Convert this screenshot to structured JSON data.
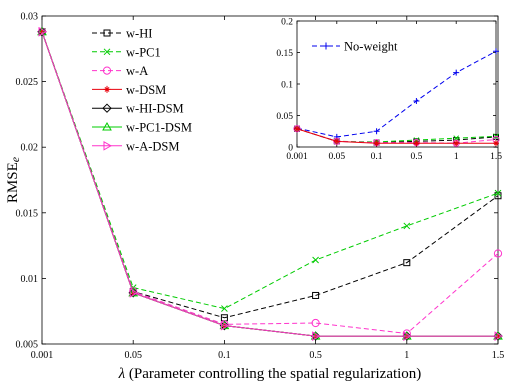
{
  "chart_data": [
    {
      "type": "line",
      "xlabel_symbol": "λ",
      "xlabel": "(Parameter controlling the spatial regularization)",
      "ylabel": "RMSE",
      "ylabel_sub": "e",
      "x": [
        "0.001",
        "0.05",
        "0.1",
        "0.5",
        "1",
        "1.5"
      ],
      "ylim": [
        0.005,
        0.03
      ],
      "yticks": [
        "0.005",
        "0.01",
        "0.015",
        "0.02",
        "0.025",
        "0.03"
      ],
      "legend_position": "top-left",
      "grid": false,
      "series": [
        {
          "name": "w-HI",
          "color": "#000000",
          "dash": "dashed",
          "marker": "square",
          "values": [
            0.0288,
            0.009,
            0.007,
            0.0087,
            0.0112,
            0.0163
          ]
        },
        {
          "name": "w-PC1",
          "color": "#00cc00",
          "dash": "dashed",
          "marker": "x",
          "values": [
            0.0288,
            0.0093,
            0.0077,
            0.0114,
            0.014,
            0.0165
          ]
        },
        {
          "name": "w-A",
          "color": "#ff33cc",
          "dash": "dashed",
          "marker": "circle",
          "values": [
            0.0288,
            0.009,
            0.0065,
            0.0066,
            0.0058,
            0.0119
          ]
        },
        {
          "name": "w-DSM",
          "color": "#e8000b",
          "dash": "solid",
          "marker": "star",
          "values": [
            0.0288,
            0.0089,
            0.0064,
            0.0056,
            0.0056,
            0.0056
          ]
        },
        {
          "name": "w-HI-DSM",
          "color": "#000000",
          "dash": "solid",
          "marker": "diamond",
          "values": [
            0.0288,
            0.0089,
            0.0064,
            0.0056,
            0.0056,
            0.0056
          ]
        },
        {
          "name": "w-PC1-DSM",
          "color": "#00cc00",
          "dash": "solid",
          "marker": "triangle-up",
          "values": [
            0.0288,
            0.0089,
            0.0064,
            0.0056,
            0.0056,
            0.0056
          ]
        },
        {
          "name": "w-A-DSM",
          "color": "#ff33cc",
          "dash": "solid",
          "marker": "triangle-right",
          "values": [
            0.0288,
            0.0089,
            0.0064,
            0.0056,
            0.0056,
            0.0056
          ]
        }
      ]
    },
    {
      "type": "line",
      "x": [
        "0.001",
        "0.05",
        "0.1",
        "0.5",
        "1",
        "1.5"
      ],
      "ylim": [
        0,
        0.2
      ],
      "yticks": [
        "0",
        "0.05",
        "0.1",
        "0.15",
        "0.2"
      ],
      "legend_position": "top-left",
      "grid": false,
      "series": [
        {
          "name": "No-weight",
          "color": "#0000ee",
          "dash": "dashed",
          "marker": "plus",
          "values": [
            0.03,
            0.016,
            0.025,
            0.073,
            0.118,
            0.152
          ]
        },
        {
          "color": "#000000",
          "dash": "dashed",
          "marker": "square",
          "values": [
            0.029,
            0.009,
            0.007,
            0.009,
            0.011,
            0.016
          ]
        },
        {
          "color": "#00cc00",
          "dash": "dashed",
          "marker": "x",
          "values": [
            0.029,
            0.009,
            0.008,
            0.011,
            0.014,
            0.017
          ]
        },
        {
          "color": "#ff33cc",
          "dash": "dashed",
          "marker": "circle",
          "values": [
            0.029,
            0.009,
            0.007,
            0.007,
            0.006,
            0.012
          ]
        },
        {
          "color": "#e8000b",
          "dash": "solid",
          "marker": "star",
          "values": [
            0.029,
            0.009,
            0.006,
            0.006,
            0.006,
            0.006
          ]
        }
      ]
    }
  ]
}
